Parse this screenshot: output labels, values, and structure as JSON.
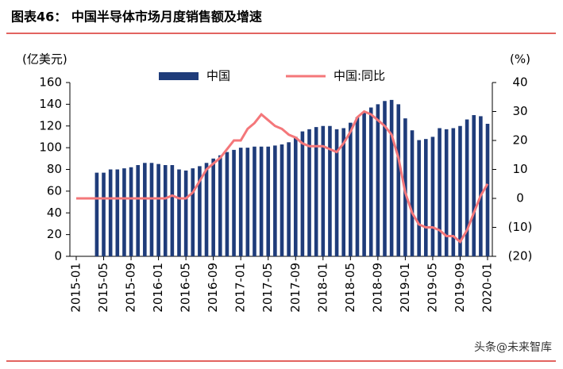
{
  "chart_data": {
    "type": "bar-line",
    "title": "图表46：  中国半导体市场月度销售额及增速",
    "y_label": "(亿美元)",
    "y2_label": "(%)",
    "watermark": "头条@未来智库",
    "categories": [
      "2015-01",
      null,
      null,
      null,
      "2015-05",
      null,
      null,
      null,
      "2015-09",
      null,
      null,
      null,
      "2016-01",
      null,
      null,
      null,
      "2016-05",
      null,
      null,
      null,
      "2016-09",
      null,
      null,
      null,
      "2017-01",
      null,
      null,
      null,
      "2017-05",
      null,
      null,
      null,
      "2017-09",
      null,
      null,
      null,
      "2018-01",
      null,
      null,
      null,
      "2018-05",
      null,
      null,
      null,
      "2018-09",
      null,
      null,
      null,
      "2019-01",
      null,
      null,
      null,
      "2019-05",
      null,
      null,
      null,
      "2019-09",
      null,
      null,
      null,
      "2020-01"
    ],
    "series": [
      {
        "name": "中国",
        "type": "bar",
        "color": "#1f3c7a",
        "values": [
          null,
          null,
          null,
          77,
          77,
          80,
          80,
          81,
          82,
          84,
          86,
          86,
          85,
          84,
          84,
          80,
          79,
          81,
          83,
          86,
          90,
          93,
          96,
          98,
          100,
          100,
          101,
          101,
          101,
          102,
          103,
          105,
          110,
          115,
          117,
          119,
          120,
          120,
          117,
          118,
          123,
          128,
          133,
          137,
          140,
          143,
          144,
          140,
          127,
          116,
          107,
          108,
          110,
          118,
          117,
          118,
          120,
          126,
          130,
          129,
          122
        ]
      },
      {
        "name": "中国:同比",
        "type": "line",
        "axis": "y2",
        "color": "#f4777a",
        "values": [
          0,
          0,
          0,
          0,
          0,
          0,
          0,
          0,
          0,
          0,
          0,
          0,
          0,
          0,
          1,
          0,
          0,
          2,
          6,
          10,
          12,
          14,
          17,
          20,
          20,
          24,
          26,
          29,
          27,
          25,
          24,
          22,
          21,
          19,
          18,
          18,
          18,
          17,
          16,
          19,
          23,
          28,
          30,
          29,
          27,
          25,
          22,
          14,
          2,
          -5,
          -9,
          -10,
          -10,
          -11,
          -13,
          -13,
          -15,
          -11,
          -5,
          1,
          5
        ]
      }
    ],
    "ylim": [
      0,
      160
    ],
    "yticks": [
      0,
      20,
      40,
      60,
      80,
      100,
      120,
      140,
      160
    ],
    "y2lim": [
      -20,
      40
    ],
    "y2ticks": [
      {
        "value": -20,
        "label": "(20)"
      },
      {
        "value": -10,
        "label": "(10)"
      },
      0,
      10,
      20,
      30,
      40
    ]
  }
}
